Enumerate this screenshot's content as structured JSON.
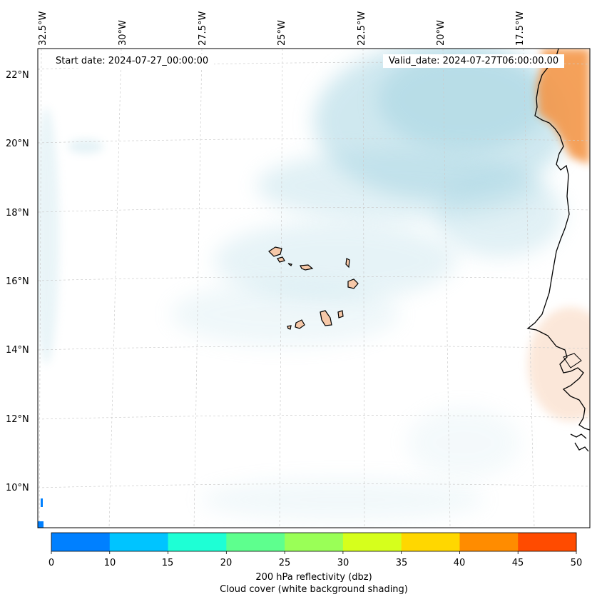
{
  "map": {
    "start_date_text": "Start date: 2024-07-27_00:00:00",
    "valid_date_text": "Valid_date: 2024-07-27T06:00:00.00",
    "longitude_labels": [
      "32.5°W",
      "30°W",
      "27.5°W",
      "25°W",
      "22.5°W",
      "20°W",
      "17.5°W"
    ],
    "latitude_labels": [
      "22°N",
      "20°N",
      "18°N",
      "16°N",
      "14°N",
      "12°N",
      "10°N"
    ],
    "colors": {
      "cloud": "#a9d6e3",
      "high_reflectivity": "#f4974a",
      "low_reflectivity": "#fbe2d0",
      "land_island": "#f6c8a8",
      "coastline": "#000000",
      "grid": "#cccccc"
    }
  },
  "colorbar": {
    "label_line1": "200 hPa reflectivity (dbz)",
    "label_line2": "Cloud cover (white background shading)",
    "tick_labels": [
      "0",
      "10",
      "15",
      "20",
      "25",
      "30",
      "35",
      "40",
      "45",
      "50"
    ],
    "bin_colors": [
      "#0080ff",
      "#00c4ff",
      "#1effd5",
      "#5eff8e",
      "#9aff57",
      "#d6ff1c",
      "#ffd700",
      "#ff8c00",
      "#ff4b00"
    ]
  }
}
